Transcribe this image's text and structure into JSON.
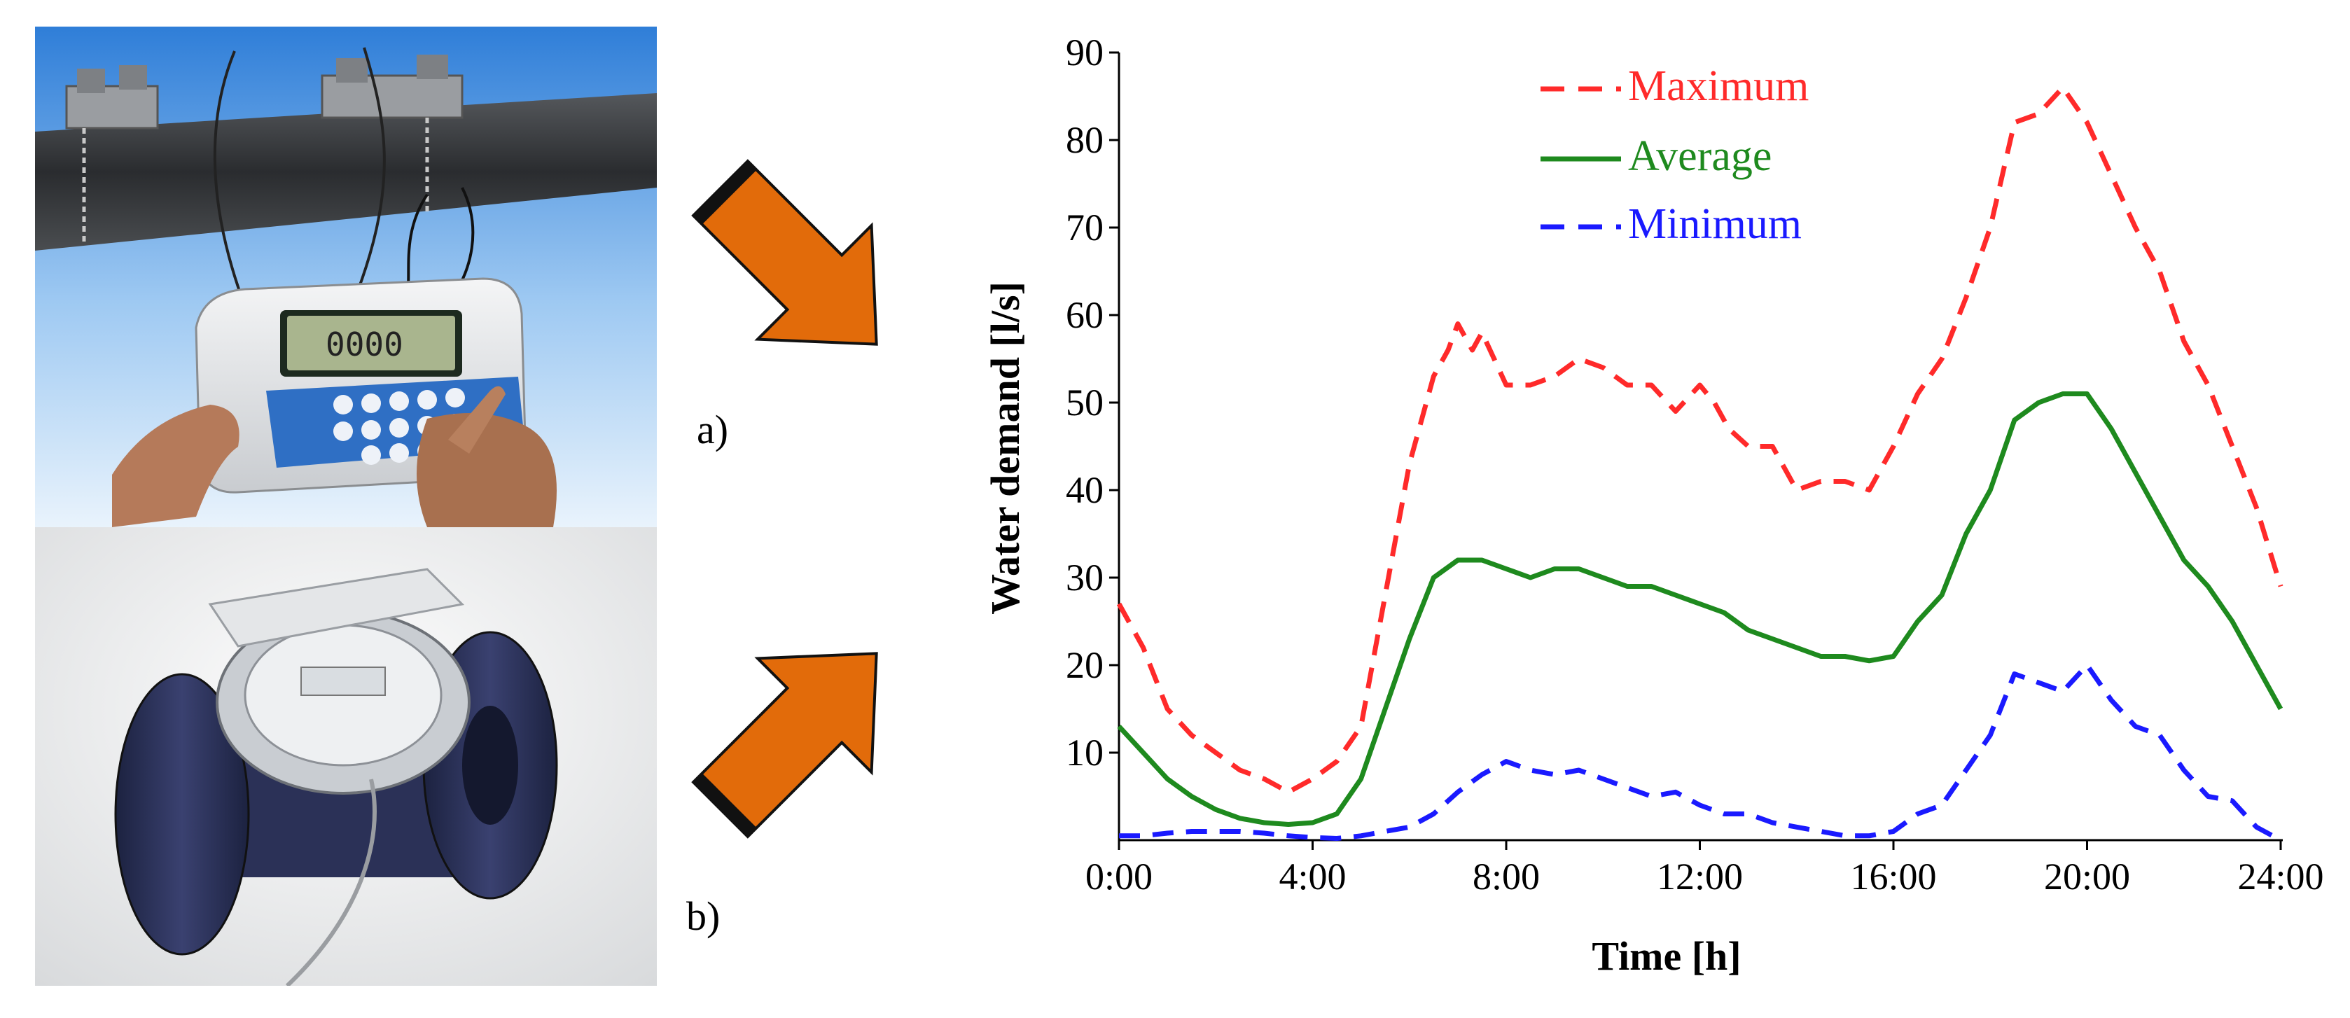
{
  "panels": {
    "a": {
      "label": "a)",
      "device_display": "0000"
    },
    "b": {
      "label": "b)"
    }
  },
  "colors": {
    "arrow": "#e26b0a",
    "maximum": "#ff2a2a",
    "average": "#1e8a1e",
    "minimum": "#1a1aff"
  },
  "chart_data": {
    "type": "line",
    "xlabel": "Time [h]",
    "ylabel": "Water demand [l/s]",
    "xlim": [
      0,
      24
    ],
    "ylim": [
      0,
      90
    ],
    "xticks": [
      0,
      4,
      8,
      12,
      16,
      20,
      24
    ],
    "xtick_labels": [
      "0:00",
      "4:00",
      "8:00",
      "12:00",
      "16:00",
      "20:00",
      "24:00"
    ],
    "yticks": [
      10,
      20,
      30,
      40,
      50,
      60,
      70,
      80,
      90
    ],
    "ytick_labels": [
      "10",
      "20",
      "30",
      "40",
      "50",
      "60",
      "70",
      "80",
      "90"
    ],
    "grid": false,
    "legend_position": "top-center",
    "series": [
      {
        "name": "Maximum",
        "style": "dashed",
        "color": "#ff2a2a",
        "x": [
          0,
          0.5,
          1,
          1.5,
          2,
          2.5,
          3,
          3.5,
          4,
          4.5,
          5,
          5.5,
          6,
          6.5,
          6.8,
          7,
          7.3,
          7.5,
          8,
          8.5,
          9,
          9.5,
          10,
          10.5,
          11,
          11.5,
          12,
          12.3,
          12.6,
          13,
          13.5,
          14,
          14.5,
          15,
          15.5,
          16,
          16.5,
          17,
          17.5,
          18,
          18.5,
          19,
          19.5,
          20,
          20.5,
          21,
          21.5,
          22,
          22.5,
          23,
          23.5,
          24
        ],
        "values": [
          27,
          22,
          15,
          12,
          10,
          8,
          7,
          5.5,
          7,
          9,
          13,
          28,
          43,
          53,
          56,
          59,
          56,
          58,
          52,
          52,
          53,
          55,
          54,
          52,
          52,
          49,
          52,
          50,
          47,
          45,
          45,
          40,
          41,
          41,
          40,
          45,
          51,
          55,
          62,
          70,
          82,
          83,
          86,
          82,
          76,
          70,
          65,
          57,
          52,
          45,
          38,
          29
        ]
      },
      {
        "name": "Average",
        "style": "solid",
        "color": "#1e8a1e",
        "x": [
          0,
          0.5,
          1,
          1.5,
          2,
          2.5,
          3,
          3.5,
          4,
          4.5,
          5,
          5.5,
          6,
          6.5,
          7,
          7.5,
          8,
          8.5,
          9,
          9.5,
          10,
          10.5,
          11,
          11.5,
          12,
          12.5,
          13,
          13.5,
          14,
          14.5,
          15,
          15.5,
          16,
          16.5,
          17,
          17.5,
          18,
          18.5,
          19,
          19.5,
          20,
          20.5,
          21,
          21.5,
          22,
          22.5,
          23,
          23.5,
          24
        ],
        "values": [
          13,
          10,
          7,
          5,
          3.5,
          2.5,
          2,
          1.8,
          2,
          3,
          7,
          15,
          23,
          30,
          32,
          32,
          31,
          30,
          31,
          31,
          30,
          29,
          29,
          28,
          27,
          26,
          24,
          23,
          22,
          21,
          21,
          20.5,
          21,
          25,
          28,
          35,
          40,
          48,
          50,
          51,
          51,
          47,
          42,
          37,
          32,
          29,
          25,
          20,
          15
        ]
      },
      {
        "name": "Minimum",
        "style": "dashed",
        "color": "#1a1aff",
        "x": [
          0,
          0.5,
          1,
          1.5,
          2,
          2.5,
          3,
          3.5,
          4,
          4.5,
          5,
          5.5,
          6,
          6.5,
          7,
          7.5,
          8,
          8.5,
          9,
          9.5,
          10,
          10.5,
          11,
          11.5,
          12,
          12.5,
          13,
          13.5,
          14,
          14.5,
          15,
          15.5,
          16,
          16.5,
          17,
          17.5,
          18,
          18.5,
          19,
          19.5,
          20,
          20.5,
          21,
          21.5,
          22,
          22.5,
          23,
          23.5,
          24
        ],
        "values": [
          0.5,
          0.5,
          0.8,
          1,
          1,
          1,
          0.8,
          0.5,
          0.3,
          0.2,
          0.5,
          1,
          1.5,
          3,
          5.5,
          7.5,
          9,
          8,
          7.5,
          8,
          7,
          6,
          5,
          5.5,
          4,
          3,
          3,
          2,
          1.5,
          1,
          0.5,
          0.5,
          1,
          3,
          4,
          8,
          12,
          19,
          18,
          17,
          20,
          16,
          13,
          12,
          8,
          5,
          4.5,
          1.5,
          0
        ]
      }
    ]
  }
}
